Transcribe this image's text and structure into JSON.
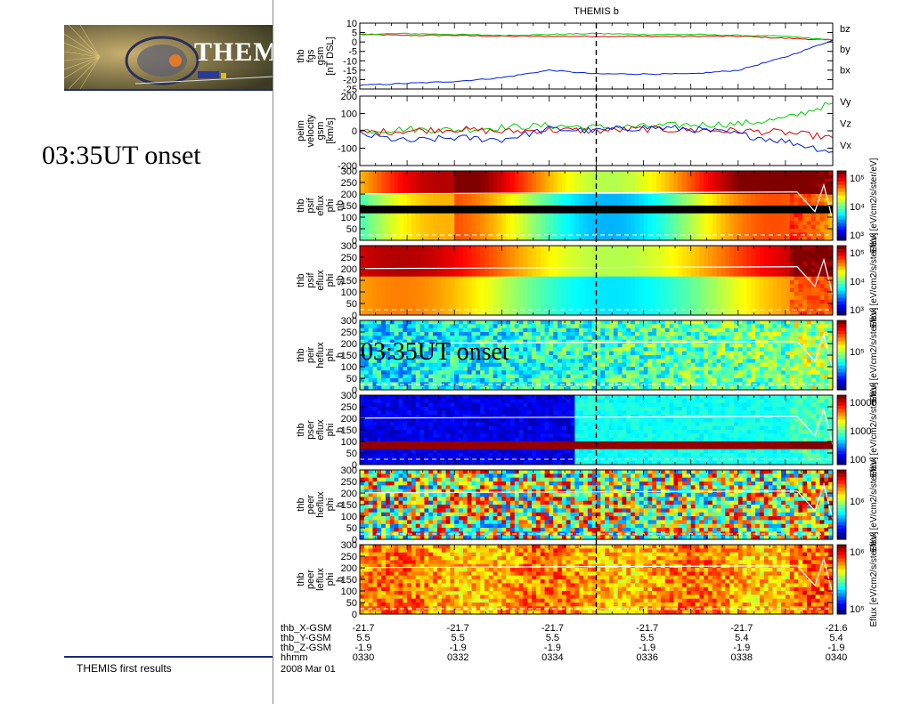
{
  "slide": {
    "logo_text": "THEM",
    "onset_label": "03:35UT onset",
    "footer": "THEMIS first results"
  },
  "figure": {
    "title": "THEMIS b",
    "overlay_label": "03:35UT onset",
    "date_label": "2008 Mar 01",
    "ephemeris": {
      "rows": [
        {
          "label": "thb_X-GSM",
          "values": [
            "-21.7",
            "-21.7",
            "-21.7",
            "-21.7",
            "-21.7",
            "-21.6"
          ]
        },
        {
          "label": "thb_Y-GSM",
          "values": [
            "5.5",
            "5.5",
            "5.5",
            "5.5",
            "5.4",
            "5.4"
          ]
        },
        {
          "label": "thb_Z-GSM",
          "values": [
            "-1.9",
            "-1.9",
            "-1.9",
            "-1.9",
            "-1.9",
            "-1.9"
          ]
        },
        {
          "label": "hhmm",
          "values": [
            "0330",
            "0332",
            "0334",
            "0336",
            "0338",
            "0340"
          ]
        }
      ]
    }
  },
  "chart_data": [
    {
      "type": "line",
      "ylabel_lines": [
        "thb",
        "fgs",
        "gsm",
        "[nT DSL]"
      ],
      "ylim": [
        -25,
        10
      ],
      "y_ticks": [
        "10",
        "5",
        "0",
        "-5",
        "-10",
        "-15",
        "-20",
        "-25"
      ],
      "y_tick_values": [
        10,
        5,
        0,
        -5,
        -10,
        -15,
        -20,
        -25
      ],
      "x": [
        "03:30",
        "03:31",
        "03:32",
        "03:33",
        "03:34",
        "03:35",
        "03:36",
        "03:37",
        "03:38",
        "03:39",
        "03:40"
      ],
      "series": [
        {
          "name": "bz",
          "color": "#e00000",
          "values": [
            4,
            3.5,
            3.5,
            3,
            3,
            3,
            3,
            3,
            3,
            2,
            1
          ]
        },
        {
          "name": "by",
          "color": "#00d000",
          "values": [
            4,
            4.5,
            4,
            3.5,
            4,
            4.5,
            4,
            4,
            3.5,
            3,
            1
          ]
        },
        {
          "name": "bx",
          "color": "#0020e0",
          "values": [
            -23,
            -22,
            -21,
            -19,
            -15,
            -17,
            -17,
            -17,
            -15,
            -8,
            1
          ]
        }
      ]
    },
    {
      "type": "line",
      "ylabel_lines": [
        "peim",
        "velocity",
        "gsm",
        "[km/s]"
      ],
      "ylim": [
        -200,
        200
      ],
      "y_ticks": [
        "200",
        "100",
        "0",
        "-100",
        "-200"
      ],
      "y_tick_values": [
        200,
        100,
        0,
        -100,
        -200
      ],
      "x": [
        "03:30",
        "03:31",
        "03:32",
        "03:33",
        "03:34",
        "03:35",
        "03:36",
        "03:37",
        "03:38",
        "03:39",
        "03:40"
      ],
      "series": [
        {
          "name": "Vy",
          "color": "#00d000",
          "values": [
            0,
            10,
            5,
            20,
            30,
            20,
            25,
            35,
            40,
            70,
            160
          ]
        },
        {
          "name": "Vz",
          "color": "#e00000",
          "values": [
            -10,
            0,
            10,
            -5,
            5,
            0,
            10,
            5,
            0,
            -10,
            -40
          ]
        },
        {
          "name": "Vx",
          "color": "#0020e0",
          "values": [
            -20,
            -60,
            -40,
            -50,
            10,
            0,
            20,
            10,
            -20,
            -60,
            -120
          ]
        }
      ]
    },
    {
      "type": "heatmap",
      "ylabel_lines": [
        "thb",
        "psif",
        "eflux",
        "phi",
        "nb"
      ],
      "y_ticks": [
        "300",
        "250",
        "200",
        "150",
        "100",
        "50",
        "0"
      ],
      "y_tick_values": [
        300,
        250,
        200,
        150,
        100,
        50,
        0
      ],
      "colorbar_ticks": [
        "10⁵",
        "10⁴",
        "10³"
      ],
      "colorbar_label": "Eflux [eV/cm2/s/ster/eV]"
    },
    {
      "type": "heatmap",
      "ylabel_lines": [
        "thb",
        "psif",
        "eflux",
        "phi",
        "sb"
      ],
      "y_ticks": [
        "300",
        "250",
        "200",
        "150",
        "100",
        "50",
        "0"
      ],
      "y_tick_values": [
        300,
        250,
        200,
        150,
        100,
        50,
        0
      ],
      "colorbar_ticks": [
        "10⁵",
        "10⁴",
        "10³"
      ],
      "colorbar_label": "Eflux [eV/cm2/s/ster/eV]"
    },
    {
      "type": "heatmap",
      "ylabel_lines": [
        "thb",
        "peir",
        "heflux",
        "phi",
        "b"
      ],
      "y_ticks": [
        "300",
        "250",
        "200",
        "150",
        "100",
        "50",
        "0"
      ],
      "y_tick_values": [
        300,
        250,
        200,
        150,
        100,
        50,
        0
      ],
      "colorbar_ticks": [
        "10⁵"
      ],
      "colorbar_label": "Eflux [eV/cm2/s/ster/eV]"
    },
    {
      "type": "heatmap",
      "ylabel_lines": [
        "thb",
        "pser",
        "eflux",
        "phi",
        "b"
      ],
      "y_ticks": [
        "300",
        "250",
        "200",
        "150",
        "100",
        "50",
        "0"
      ],
      "y_tick_values": [
        300,
        250,
        200,
        150,
        100,
        50,
        0
      ],
      "colorbar_ticks": [
        "10000",
        "1000",
        "100"
      ],
      "colorbar_label": "Eflux [eV/cm2/s/ster/eV]"
    },
    {
      "type": "heatmap",
      "ylabel_lines": [
        "thb",
        "peer",
        "heflux",
        "phi",
        "b"
      ],
      "y_ticks": [
        "300",
        "250",
        "200",
        "150",
        "100",
        "50",
        "0"
      ],
      "y_tick_values": [
        300,
        250,
        200,
        150,
        100,
        50,
        0
      ],
      "colorbar_ticks": [
        "10⁶"
      ],
      "colorbar_label": "Eflux [eV/cm2/s/ster/eV]"
    },
    {
      "type": "heatmap",
      "ylabel_lines": [
        "thb",
        "peer",
        "leflux",
        "phi",
        "b"
      ],
      "y_ticks": [
        "300",
        "250",
        "200",
        "150",
        "100",
        "50",
        "0"
      ],
      "y_tick_values": [
        300,
        250,
        200,
        150,
        100,
        50,
        0
      ],
      "colorbar_ticks": [
        "10⁶",
        "10⁵"
      ],
      "colorbar_label": "Eflux [eV/cm2/s/ster/eV]"
    }
  ]
}
